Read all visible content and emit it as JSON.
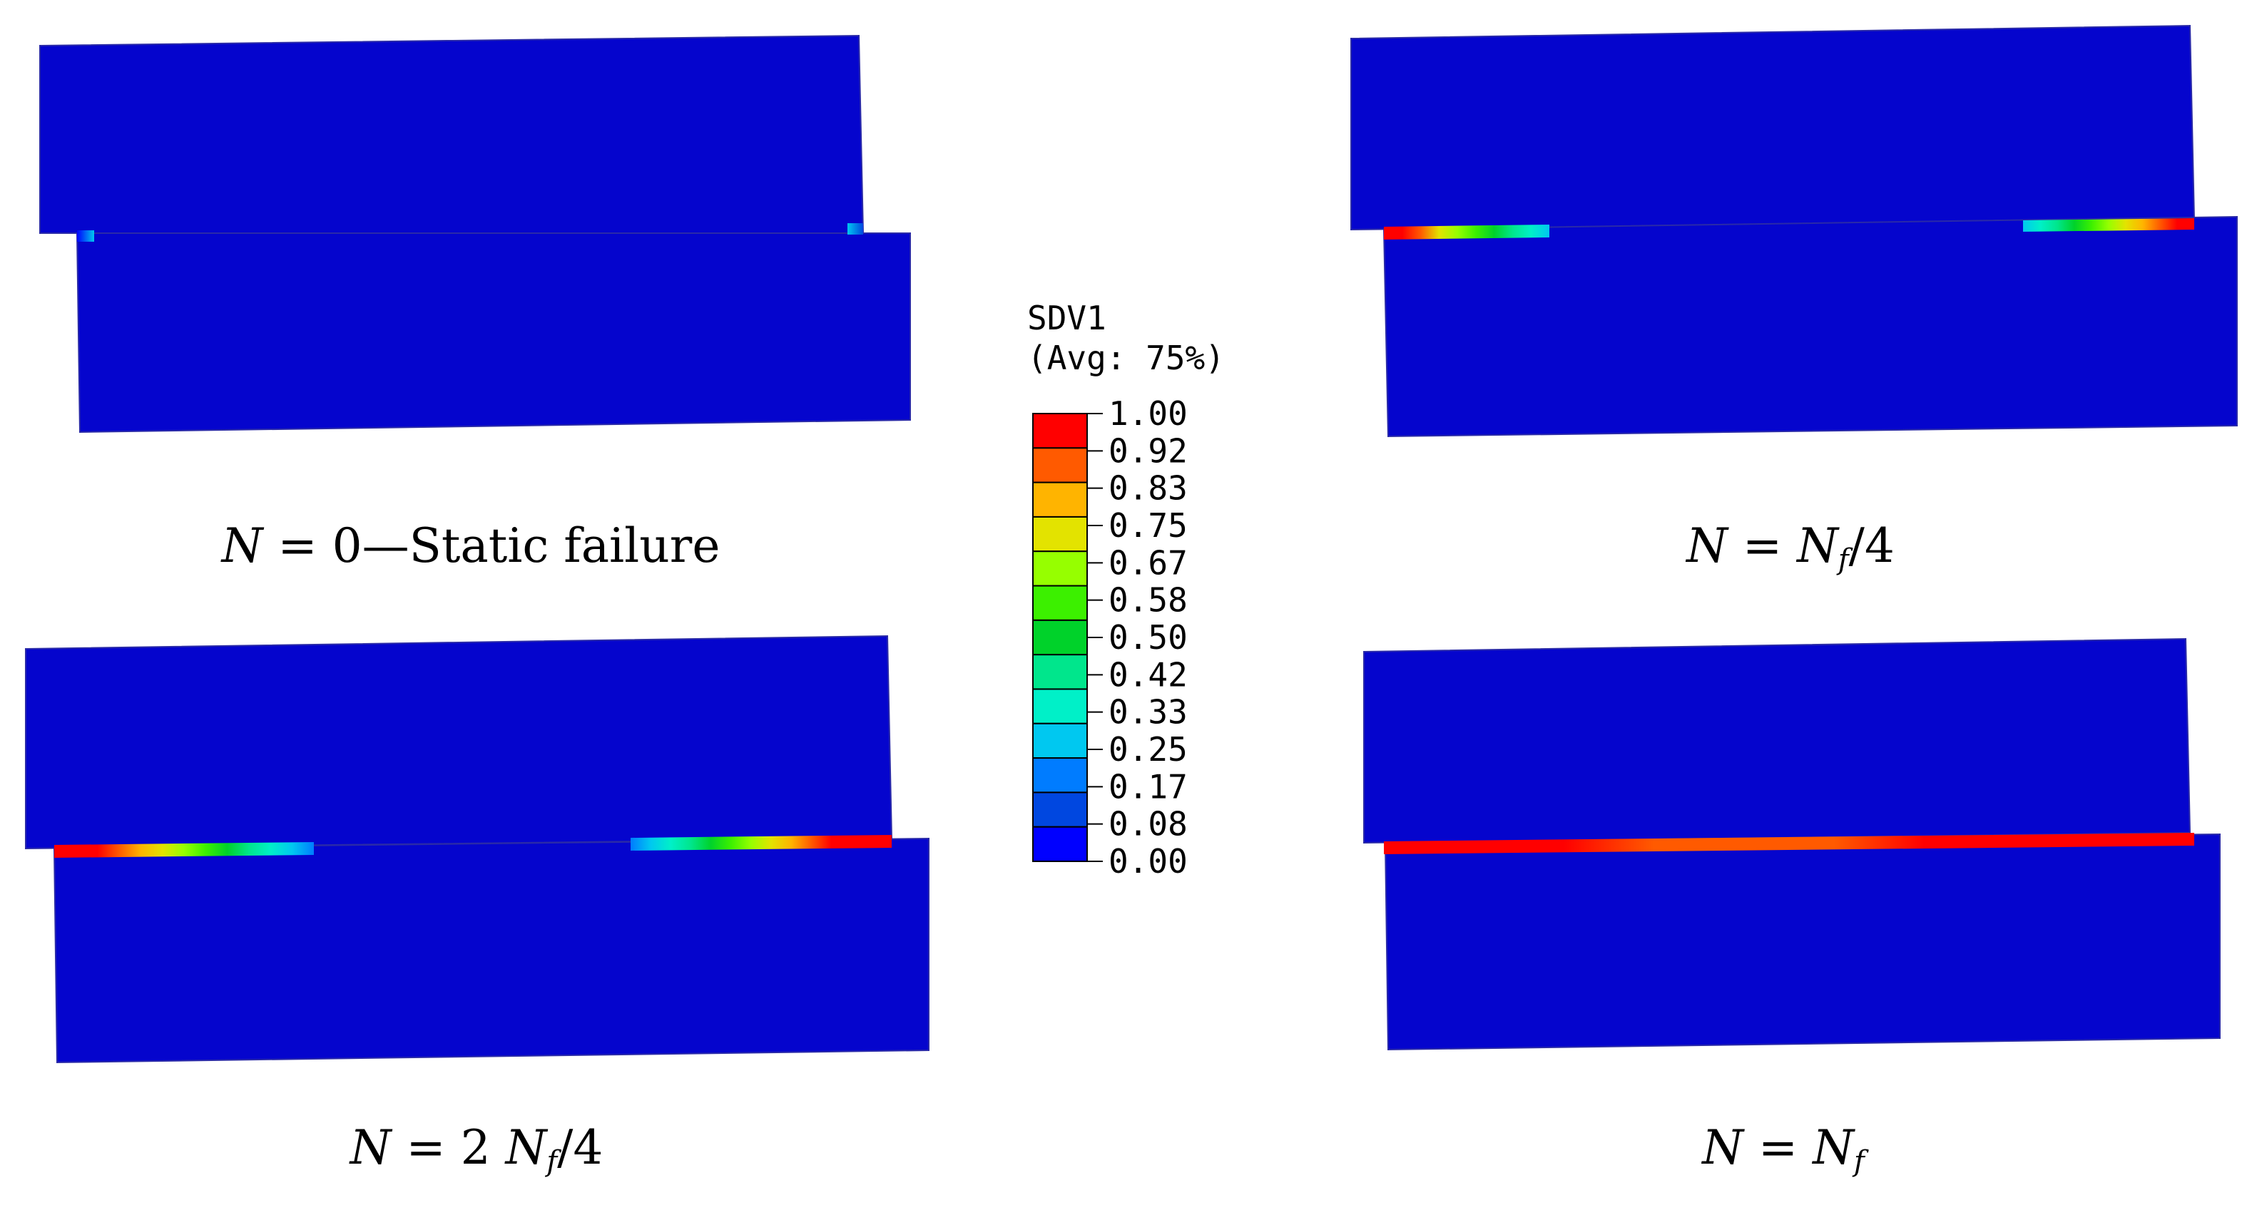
{
  "panels": [
    {
      "caption": {
        "N": "N",
        "eq": " = 0—Static failure"
      },
      "damage_left": {
        "stops": [
          0.03,
          0.25
        ]
      },
      "damage_right": {
        "stops": [
          0.25,
          0.05
        ]
      }
    },
    {
      "caption": {
        "N": "N",
        "eq": " = ",
        "Nf": "N",
        "f": "f",
        "suffix": "/4"
      },
      "damage_left": {
        "stops": [
          1.0,
          1.0,
          0.92,
          0.75,
          0.67,
          0.58,
          0.5,
          0.42,
          0.33,
          0.25
        ]
      },
      "damage_right": {
        "stops": [
          0.25,
          0.33,
          0.42,
          0.5,
          0.58,
          0.67,
          0.75,
          0.83,
          0.92,
          1.0,
          1.0
        ]
      }
    },
    {
      "caption": {
        "N": "N",
        "eq": " = 2 ",
        "Nf": "N",
        "f": "f",
        "suffix": "/4"
      },
      "damage_left": {
        "stops": [
          1.0,
          1.0,
          1.0,
          0.92,
          0.83,
          0.75,
          0.67,
          0.58,
          0.5,
          0.42,
          0.33,
          0.25,
          0.17
        ]
      },
      "damage_right": {
        "stops": [
          0.17,
          0.25,
          0.33,
          0.42,
          0.5,
          0.58,
          0.67,
          0.75,
          0.83,
          0.92,
          1.0,
          1.0,
          1.0,
          1.0
        ]
      }
    },
    {
      "caption": {
        "N": "N",
        "eq": " = ",
        "Nf": "N",
        "f": "f",
        "suffix": ""
      },
      "damage_full": {
        "stops": [
          1.0,
          1.0,
          1.0,
          0.92,
          0.92,
          0.92,
          1.0,
          1.0,
          1.0,
          1.0
        ]
      }
    }
  ],
  "legend": {
    "title": "SDV1",
    "subtitle": "(Avg: 75%)",
    "values": [
      "1.00",
      "0.92",
      "0.83",
      "0.75",
      "0.67",
      "0.58",
      "0.50",
      "0.42",
      "0.33",
      "0.25",
      "0.17",
      "0.08",
      "0.00"
    ],
    "colors": [
      "#ff0000",
      "#ff5a00",
      "#ffb400",
      "#e3e300",
      "#96ff00",
      "#3cf000",
      "#00d22a",
      "#00e68c",
      "#00f0c8",
      "#00c8f0",
      "#007cff",
      "#0047e0",
      "#0000ff"
    ]
  },
  "colors": {
    "body": "#0505cd",
    "edge": "#2a2aa8"
  }
}
